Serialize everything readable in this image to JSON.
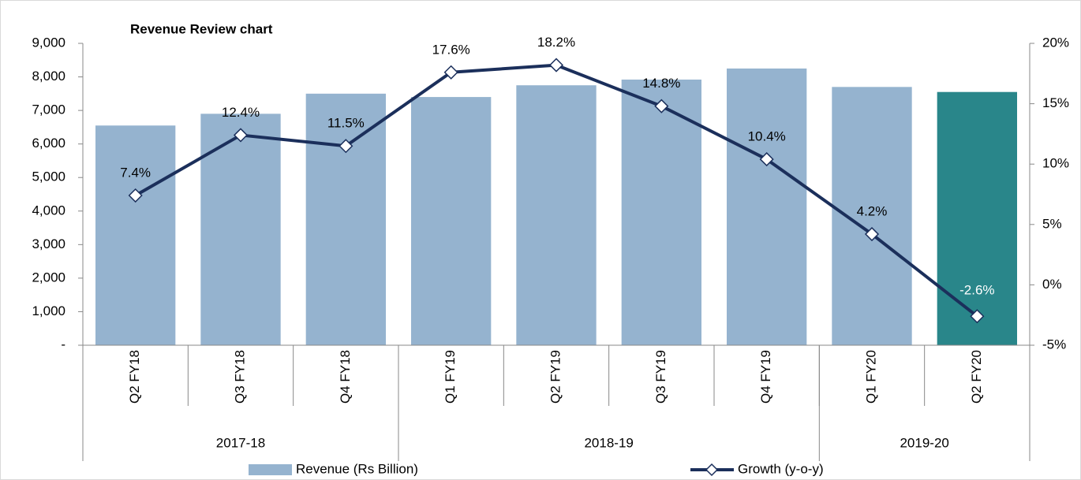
{
  "chart_data": {
    "type": "bar_line",
    "title": "Revenue Review chart",
    "categories": [
      "Q2 FY18",
      "Q3 FY18",
      "Q4 FY18",
      "Q1 FY19",
      "Q2 FY19",
      "Q3 FY19",
      "Q4 FY19",
      "Q1 FY20",
      "Q2 FY20"
    ],
    "groups": [
      {
        "name": "2017-18",
        "count": 3
      },
      {
        "name": "2018-19",
        "count": 4
      },
      {
        "name": "2019-20",
        "count": 2
      }
    ],
    "series": [
      {
        "name": "Revenue (Rs Billion)",
        "type": "bar",
        "color": "#95b3cf",
        "bar_colors": [
          "#95b3cf",
          "#95b3cf",
          "#95b3cf",
          "#95b3cf",
          "#95b3cf",
          "#95b3cf",
          "#95b3cf",
          "#95b3cf",
          "#29868a"
        ],
        "values": [
          6550,
          6900,
          7500,
          7400,
          7750,
          7920,
          8250,
          7700,
          7550
        ]
      },
      {
        "name": "Growth (y-o-y)",
        "type": "line",
        "axis": "y2",
        "color": "#1b2f5b",
        "values": [
          7.4,
          12.4,
          11.5,
          17.6,
          18.2,
          14.8,
          10.4,
          4.2,
          -2.6
        ],
        "value_labels": [
          "7.4%",
          "12.4%",
          "11.5%",
          "17.6%",
          "18.2%",
          "14.8%",
          "10.4%",
          "4.2%",
          "-2.6%"
        ]
      }
    ],
    "ylim": [
      0,
      9000
    ],
    "yticks": [
      {
        "value": 0,
        "label": "-"
      },
      {
        "value": 1000,
        "label": "1,000"
      },
      {
        "value": 2000,
        "label": "2,000"
      },
      {
        "value": 3000,
        "label": "3,000"
      },
      {
        "value": 4000,
        "label": "4,000"
      },
      {
        "value": 5000,
        "label": "5,000"
      },
      {
        "value": 6000,
        "label": "6,000"
      },
      {
        "value": 7000,
        "label": "7,000"
      },
      {
        "value": 8000,
        "label": "8,000"
      },
      {
        "value": 9000,
        "label": "9,000"
      }
    ],
    "y2lim": [
      -5,
      20
    ],
    "y2ticks": [
      {
        "value": -5,
        "label": "-5%"
      },
      {
        "value": 0,
        "label": "0%"
      },
      {
        "value": 5,
        "label": "5%"
      },
      {
        "value": 10,
        "label": "10%"
      },
      {
        "value": 15,
        "label": "15%"
      },
      {
        "value": 20,
        "label": "20%"
      }
    ],
    "legend": "bottom"
  }
}
